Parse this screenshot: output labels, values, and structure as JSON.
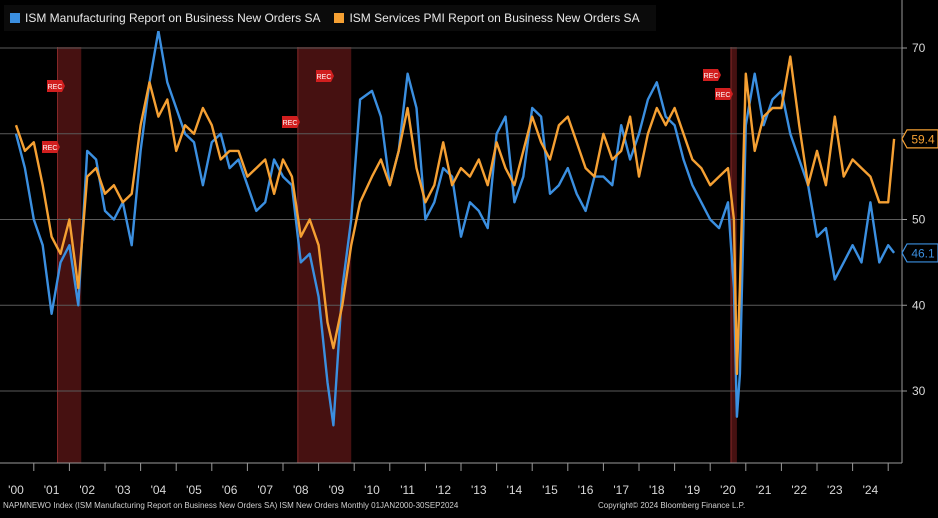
{
  "legend": {
    "items": [
      {
        "label": "ISM Manufacturing Report on Business New Orders SA",
        "color": "#3b8fe0"
      },
      {
        "label": "ISM Services PMI Report on Business New Orders SA",
        "color": "#f5a033"
      }
    ]
  },
  "footer": {
    "left": "NAPMNEWO Index (ISM Manufacturing Report on Business New Orders SA) ISM New Orders  Monthly 01JAN2000-30SEP2024",
    "right": "Copyright© 2024 Bloomberg Finance L.P."
  },
  "chart_data": {
    "type": "line",
    "x_range": [
      "2000-01",
      "2024-09"
    ],
    "x_tick_labels": [
      "'00",
      "'01",
      "'02",
      "'03",
      "'04",
      "'05",
      "'06",
      "'07",
      "'08",
      "'09",
      "'10",
      "'11",
      "'12",
      "'13",
      "'14",
      "'15",
      "'16",
      "'17",
      "'18",
      "'19",
      "'20",
      "'21",
      "'22",
      "'23",
      "'24"
    ],
    "y_tick_labels": [
      30,
      40,
      50,
      60,
      70
    ],
    "ylim": [
      22,
      75
    ],
    "grid": true,
    "y_axis_side": "right",
    "recessions": [
      {
        "start": "2001-03",
        "end": "2001-11",
        "label": "REC"
      },
      {
        "start": "2007-12",
        "end": "2009-06",
        "label": "REC"
      },
      {
        "start": "2020-02",
        "end": "2020-04",
        "label": "REC"
      }
    ],
    "last_values": [
      {
        "series": "ISM Manufacturing Report on Business New Orders SA",
        "value": "46.1",
        "color": "#3b8fe0"
      },
      {
        "series": "ISM Services PMI Report on Business New Orders SA",
        "value": "59.4",
        "color": "#f5a033"
      }
    ],
    "series": [
      {
        "name": "ISM Manufacturing Report on Business New Orders SA",
        "color": "#3b8fe0",
        "points": [
          [
            "2000-01",
            60
          ],
          [
            "2000-04",
            56
          ],
          [
            "2000-07",
            50
          ],
          [
            "2000-10",
            47
          ],
          [
            "2001-01",
            39
          ],
          [
            "2001-04",
            45
          ],
          [
            "2001-07",
            47
          ],
          [
            "2001-10",
            40
          ],
          [
            "2002-01",
            58
          ],
          [
            "2002-04",
            57
          ],
          [
            "2002-07",
            51
          ],
          [
            "2002-10",
            50
          ],
          [
            "2003-01",
            52
          ],
          [
            "2003-04",
            47
          ],
          [
            "2003-07",
            58
          ],
          [
            "2003-10",
            66
          ],
          [
            "2004-01",
            72
          ],
          [
            "2004-04",
            66
          ],
          [
            "2004-07",
            63
          ],
          [
            "2004-10",
            60
          ],
          [
            "2005-01",
            59
          ],
          [
            "2005-04",
            54
          ],
          [
            "2005-07",
            59
          ],
          [
            "2005-10",
            60
          ],
          [
            "2006-01",
            56
          ],
          [
            "2006-04",
            57
          ],
          [
            "2006-07",
            54
          ],
          [
            "2006-10",
            51
          ],
          [
            "2007-01",
            52
          ],
          [
            "2007-04",
            57
          ],
          [
            "2007-07",
            55
          ],
          [
            "2007-10",
            54
          ],
          [
            "2008-01",
            45
          ],
          [
            "2008-04",
            46
          ],
          [
            "2008-07",
            41
          ],
          [
            "2008-10",
            31
          ],
          [
            "2008-12",
            26
          ],
          [
            "2009-03",
            42
          ],
          [
            "2009-06",
            50
          ],
          [
            "2009-09",
            64
          ],
          [
            "2010-01",
            65
          ],
          [
            "2010-04",
            62
          ],
          [
            "2010-07",
            54
          ],
          [
            "2010-10",
            58
          ],
          [
            "2011-01",
            67
          ],
          [
            "2011-04",
            63
          ],
          [
            "2011-07",
            50
          ],
          [
            "2011-10",
            52
          ],
          [
            "2012-01",
            56
          ],
          [
            "2012-04",
            55
          ],
          [
            "2012-07",
            48
          ],
          [
            "2012-10",
            52
          ],
          [
            "2013-01",
            51
          ],
          [
            "2013-04",
            49
          ],
          [
            "2013-07",
            60
          ],
          [
            "2013-10",
            62
          ],
          [
            "2014-01",
            52
          ],
          [
            "2014-04",
            55
          ],
          [
            "2014-07",
            63
          ],
          [
            "2014-10",
            62
          ],
          [
            "2015-01",
            53
          ],
          [
            "2015-04",
            54
          ],
          [
            "2015-07",
            56
          ],
          [
            "2015-10",
            53
          ],
          [
            "2016-01",
            51
          ],
          [
            "2016-04",
            55
          ],
          [
            "2016-07",
            55
          ],
          [
            "2016-10",
            54
          ],
          [
            "2017-01",
            61
          ],
          [
            "2017-04",
            57
          ],
          [
            "2017-07",
            60
          ],
          [
            "2017-10",
            64
          ],
          [
            "2018-01",
            66
          ],
          [
            "2018-04",
            62
          ],
          [
            "2018-07",
            61
          ],
          [
            "2018-10",
            57
          ],
          [
            "2019-01",
            54
          ],
          [
            "2019-04",
            52
          ],
          [
            "2019-07",
            50
          ],
          [
            "2019-10",
            49
          ],
          [
            "2020-01",
            52
          ],
          [
            "2020-03",
            42
          ],
          [
            "2020-04",
            27
          ],
          [
            "2020-05",
            32
          ],
          [
            "2020-07",
            61
          ],
          [
            "2020-10",
            67
          ],
          [
            "2021-01",
            61
          ],
          [
            "2021-04",
            64
          ],
          [
            "2021-07",
            65
          ],
          [
            "2021-10",
            60
          ],
          [
            "2022-01",
            57
          ],
          [
            "2022-04",
            54
          ],
          [
            "2022-07",
            48
          ],
          [
            "2022-10",
            49
          ],
          [
            "2023-01",
            43
          ],
          [
            "2023-04",
            45
          ],
          [
            "2023-07",
            47
          ],
          [
            "2023-10",
            45
          ],
          [
            "2024-01",
            52
          ],
          [
            "2024-04",
            45
          ],
          [
            "2024-07",
            47
          ],
          [
            "2024-09",
            46.1
          ]
        ]
      },
      {
        "name": "ISM Services PMI Report on Business New Orders SA",
        "color": "#f5a033",
        "points": [
          [
            "2000-01",
            61
          ],
          [
            "2000-04",
            58
          ],
          [
            "2000-07",
            59
          ],
          [
            "2000-10",
            54
          ],
          [
            "2001-01",
            48
          ],
          [
            "2001-04",
            46
          ],
          [
            "2001-07",
            50
          ],
          [
            "2001-10",
            42
          ],
          [
            "2002-01",
            55
          ],
          [
            "2002-04",
            56
          ],
          [
            "2002-07",
            53
          ],
          [
            "2002-10",
            54
          ],
          [
            "2003-01",
            52
          ],
          [
            "2003-04",
            53
          ],
          [
            "2003-07",
            61
          ],
          [
            "2003-10",
            66
          ],
          [
            "2004-01",
            62
          ],
          [
            "2004-04",
            64
          ],
          [
            "2004-07",
            58
          ],
          [
            "2004-10",
            61
          ],
          [
            "2005-01",
            60
          ],
          [
            "2005-04",
            63
          ],
          [
            "2005-07",
            61
          ],
          [
            "2005-10",
            57
          ],
          [
            "2006-01",
            58
          ],
          [
            "2006-04",
            58
          ],
          [
            "2006-07",
            55
          ],
          [
            "2006-10",
            56
          ],
          [
            "2007-01",
            57
          ],
          [
            "2007-04",
            53
          ],
          [
            "2007-07",
            57
          ],
          [
            "2007-10",
            55
          ],
          [
            "2008-01",
            48
          ],
          [
            "2008-04",
            50
          ],
          [
            "2008-07",
            47
          ],
          [
            "2008-10",
            38
          ],
          [
            "2008-12",
            35
          ],
          [
            "2009-03",
            40
          ],
          [
            "2009-06",
            47
          ],
          [
            "2009-09",
            52
          ],
          [
            "2010-01",
            55
          ],
          [
            "2010-04",
            57
          ],
          [
            "2010-07",
            54
          ],
          [
            "2010-10",
            58
          ],
          [
            "2011-01",
            63
          ],
          [
            "2011-04",
            56
          ],
          [
            "2011-07",
            52
          ],
          [
            "2011-10",
            54
          ],
          [
            "2012-01",
            59
          ],
          [
            "2012-04",
            54
          ],
          [
            "2012-07",
            56
          ],
          [
            "2012-10",
            55
          ],
          [
            "2013-01",
            57
          ],
          [
            "2013-04",
            54
          ],
          [
            "2013-07",
            59
          ],
          [
            "2013-10",
            56
          ],
          [
            "2014-01",
            54
          ],
          [
            "2014-04",
            58
          ],
          [
            "2014-07",
            62
          ],
          [
            "2014-10",
            59
          ],
          [
            "2015-01",
            57
          ],
          [
            "2015-04",
            61
          ],
          [
            "2015-07",
            62
          ],
          [
            "2015-10",
            59
          ],
          [
            "2016-01",
            56
          ],
          [
            "2016-04",
            55
          ],
          [
            "2016-07",
            60
          ],
          [
            "2016-10",
            57
          ],
          [
            "2017-01",
            58
          ],
          [
            "2017-04",
            62
          ],
          [
            "2017-07",
            55
          ],
          [
            "2017-10",
            60
          ],
          [
            "2018-01",
            63
          ],
          [
            "2018-04",
            61
          ],
          [
            "2018-07",
            63
          ],
          [
            "2018-10",
            60
          ],
          [
            "2019-01",
            57
          ],
          [
            "2019-04",
            56
          ],
          [
            "2019-07",
            54
          ],
          [
            "2019-10",
            55
          ],
          [
            "2020-01",
            56
          ],
          [
            "2020-03",
            50
          ],
          [
            "2020-04",
            32
          ],
          [
            "2020-05",
            42
          ],
          [
            "2020-07",
            67
          ],
          [
            "2020-10",
            58
          ],
          [
            "2021-01",
            62
          ],
          [
            "2021-04",
            63
          ],
          [
            "2021-07",
            63
          ],
          [
            "2021-10",
            69
          ],
          [
            "2022-01",
            61
          ],
          [
            "2022-04",
            54
          ],
          [
            "2022-07",
            58
          ],
          [
            "2022-10",
            54
          ],
          [
            "2023-01",
            62
          ],
          [
            "2023-04",
            55
          ],
          [
            "2023-07",
            57
          ],
          [
            "2023-10",
            56
          ],
          [
            "2024-01",
            55
          ],
          [
            "2024-04",
            52
          ],
          [
            "2024-07",
            52
          ],
          [
            "2024-09",
            59.4
          ]
        ]
      }
    ]
  }
}
